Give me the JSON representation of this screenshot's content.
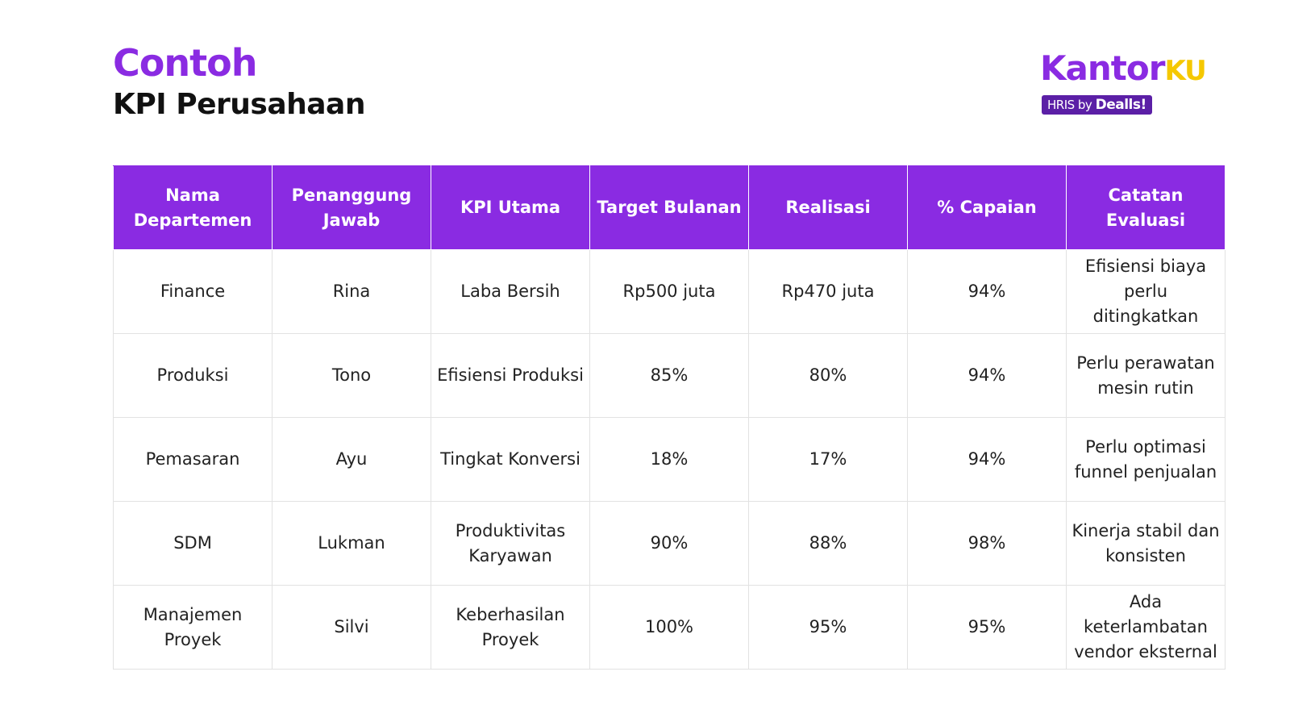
{
  "header": {
    "title_accent": "Contoh",
    "title_main": "KPI Perusahaan"
  },
  "logo": {
    "word_main": "Kantor",
    "word_accent": "KU",
    "badge_prefix": "HRIS by",
    "badge_brand": "Dealls!",
    "colors": {
      "primary": "#8a2be2",
      "accent": "#f5c800",
      "badge": "#5b1fa6"
    }
  },
  "table": {
    "columns": [
      "Nama Departemen",
      "Penanggung Jawab",
      "KPI Utama",
      "Target Bulanan",
      "Realisasi",
      "% Capaian",
      "Catatan Evaluasi"
    ],
    "rows": [
      [
        "Finance",
        "Rina",
        "Laba Bersih",
        "Rp500 juta",
        "Rp470 juta",
        "94%",
        "Efisiensi biaya perlu ditingkatkan"
      ],
      [
        "Produksi",
        "Tono",
        "Efisiensi Produksi",
        "85%",
        "80%",
        "94%",
        "Perlu perawatan mesin rutin"
      ],
      [
        "Pemasaran",
        "Ayu",
        "Tingkat Konversi",
        "18%",
        "17%",
        "94%",
        "Perlu optimasi funnel penjualan"
      ],
      [
        "SDM",
        "Lukman",
        "Produktivitas Karyawan",
        "90%",
        "88%",
        "98%",
        "Kinerja stabil dan konsisten"
      ],
      [
        "Manajemen Proyek",
        "Silvi",
        "Keberhasilan Proyek",
        "100%",
        "95%",
        "95%",
        "Ada keterlambatan vendor eksternal"
      ]
    ]
  }
}
